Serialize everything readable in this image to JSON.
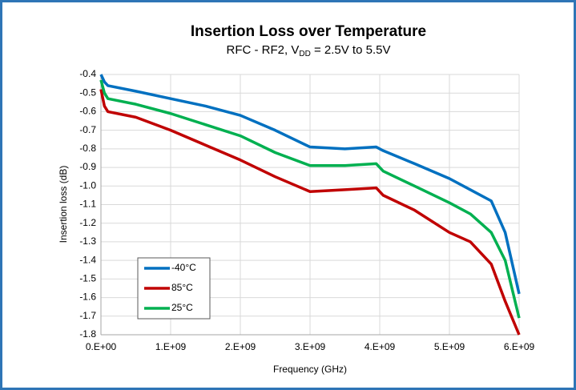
{
  "chart_data": {
    "type": "line",
    "title": "Insertion Loss over Temperature",
    "subtitle": [
      "RFC - RF2, V",
      "DD",
      " = 2.5V to 5.5V"
    ],
    "x_label": "Frequency (GHz)",
    "y_label": "Insertion loss (dB)",
    "x": [
      0,
      50000000,
      100000000,
      500000000,
      1000000000,
      1500000000,
      2000000000,
      2500000000,
      3000000000,
      3500000000,
      3950000000,
      4050000000,
      4500000000,
      5000000000,
      5300000000,
      5600000000,
      5800000000,
      6000000000
    ],
    "series": [
      {
        "name": "-40°C",
        "color": "#0070c0",
        "values": [
          -0.4,
          -0.44,
          -0.46,
          -0.49,
          -0.53,
          -0.57,
          -0.62,
          -0.7,
          -0.79,
          -0.8,
          -0.79,
          -0.81,
          -0.88,
          -0.96,
          -1.02,
          -1.08,
          -1.25,
          -1.58
        ]
      },
      {
        "name": "85°C",
        "color": "#c00000",
        "values": [
          -0.48,
          -0.57,
          -0.6,
          -0.63,
          -0.7,
          -0.78,
          -0.86,
          -0.95,
          -1.03,
          -1.02,
          -1.01,
          -1.05,
          -1.13,
          -1.25,
          -1.3,
          -1.42,
          -1.62,
          -1.8
        ]
      },
      {
        "name": "25°C",
        "color": "#00b050",
        "values": [
          -0.43,
          -0.5,
          -0.53,
          -0.56,
          -0.61,
          -0.67,
          -0.73,
          -0.82,
          -0.89,
          -0.89,
          -0.88,
          -0.92,
          -1.0,
          -1.09,
          -1.15,
          -1.25,
          -1.4,
          -1.71
        ]
      }
    ],
    "xlim": [
      0,
      6000000000
    ],
    "xticks": [
      {
        "value": 0,
        "label": "0.E+00"
      },
      {
        "value": 1000000000,
        "label": "1.E+09"
      },
      {
        "value": 2000000000,
        "label": "2.E+09"
      },
      {
        "value": 3000000000,
        "label": "3.E+09"
      },
      {
        "value": 4000000000,
        "label": "4.E+09"
      },
      {
        "value": 5000000000,
        "label": "5.E+09"
      },
      {
        "value": 6000000000,
        "label": "6.E+09"
      }
    ],
    "ylim": [
      -1.8,
      -0.4
    ],
    "yticks": [
      -0.4,
      -0.5,
      -0.6,
      -0.7,
      -0.8,
      -0.9,
      {
        "value": -1,
        "label": "-1.0"
      },
      -1.1,
      -1.2,
      -1.3,
      -1.4,
      -1.5,
      -1.6,
      -1.7,
      -1.8
    ],
    "grid": true,
    "legend": "lower left"
  }
}
